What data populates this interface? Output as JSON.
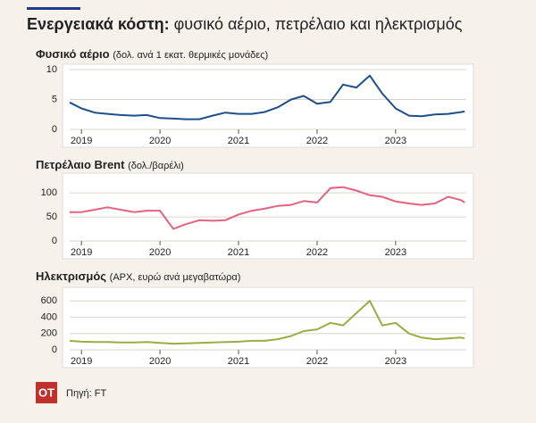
{
  "header": {
    "title_bold": "Ενεργειακά κόστη:",
    "title_rest": "φυσικό αέριο, πετρέλαιο και ηλεκτρισμός"
  },
  "footer": {
    "logo": "ΟΤ",
    "source": "Πηγή: FT"
  },
  "chart_data": [
    {
      "type": "line",
      "title": "Φυσικό αέριο",
      "subtitle": "(δολ. ανά 1 εκατ. θερμικές μονάδες)",
      "color": "#1f4e8c",
      "x": [
        2018.85,
        2019,
        2019.17,
        2019.33,
        2019.5,
        2019.67,
        2019.83,
        2020,
        2020.17,
        2020.33,
        2020.5,
        2020.67,
        2020.83,
        2021,
        2021.17,
        2021.33,
        2021.5,
        2021.67,
        2021.83,
        2022,
        2022.17,
        2022.33,
        2022.5,
        2022.67,
        2022.83,
        2023,
        2023.17,
        2023.33,
        2023.5,
        2023.67,
        2023.83,
        2023.88
      ],
      "values": [
        4.5,
        3.5,
        2.8,
        2.6,
        2.4,
        2.3,
        2.4,
        1.9,
        1.8,
        1.7,
        1.7,
        2.3,
        2.8,
        2.6,
        2.6,
        2.9,
        3.7,
        5.0,
        5.6,
        4.3,
        4.6,
        7.5,
        7.0,
        9.0,
        6.0,
        3.5,
        2.3,
        2.2,
        2.5,
        2.6,
        2.9,
        3.0
      ],
      "xlim": [
        2018.85,
        2023.9
      ],
      "xticks": [
        2019,
        2020,
        2021,
        2022,
        2023
      ],
      "ylim": [
        0,
        10
      ],
      "yticks": [
        0,
        5,
        10
      ],
      "grid": true
    },
    {
      "type": "line",
      "title": "Πετρέλαιο Brent",
      "subtitle": "(δολ./βαρέλι)",
      "color": "#e6617d",
      "x": [
        2018.85,
        2019,
        2019.17,
        2019.33,
        2019.5,
        2019.67,
        2019.83,
        2020,
        2020.17,
        2020.33,
        2020.5,
        2020.67,
        2020.83,
        2021,
        2021.17,
        2021.33,
        2021.5,
        2021.67,
        2021.83,
        2022,
        2022.17,
        2022.33,
        2022.5,
        2022.67,
        2022.83,
        2023,
        2023.17,
        2023.33,
        2023.5,
        2023.67,
        2023.83,
        2023.88
      ],
      "values": [
        60,
        60,
        65,
        70,
        65,
        60,
        63,
        63,
        25,
        35,
        43,
        42,
        43,
        55,
        63,
        67,
        73,
        75,
        83,
        80,
        110,
        112,
        105,
        95,
        92,
        82,
        78,
        75,
        78,
        92,
        85,
        80
      ],
      "xlim": [
        2018.85,
        2023.9
      ],
      "xticks": [
        2019,
        2020,
        2021,
        2022,
        2023
      ],
      "ylim": [
        0,
        130
      ],
      "yticks": [
        0,
        50,
        100
      ],
      "grid": true
    },
    {
      "type": "line",
      "title": "Ηλεκτρισμός",
      "subtitle": "(ΑΡΧ, ευρώ ανά μεγαβατώρα)",
      "color": "#9aad45",
      "x": [
        2018.85,
        2019,
        2019.17,
        2019.33,
        2019.5,
        2019.67,
        2019.83,
        2020,
        2020.17,
        2020.33,
        2020.5,
        2020.67,
        2020.83,
        2021,
        2021.17,
        2021.33,
        2021.5,
        2021.67,
        2021.83,
        2022,
        2022.17,
        2022.33,
        2022.5,
        2022.67,
        2022.83,
        2023,
        2023.17,
        2023.33,
        2023.5,
        2023.67,
        2023.83,
        2023.88
      ],
      "values": [
        110,
        100,
        95,
        95,
        90,
        90,
        95,
        85,
        75,
        80,
        85,
        90,
        95,
        100,
        110,
        110,
        130,
        170,
        230,
        250,
        330,
        300,
        450,
        600,
        300,
        330,
        200,
        150,
        130,
        140,
        150,
        140
      ],
      "xlim": [
        2018.85,
        2023.9
      ],
      "xticks": [
        2019,
        2020,
        2021,
        2022,
        2023
      ],
      "ylim": [
        0,
        700
      ],
      "yticks": [
        0,
        200,
        400,
        600
      ],
      "grid": true
    }
  ]
}
